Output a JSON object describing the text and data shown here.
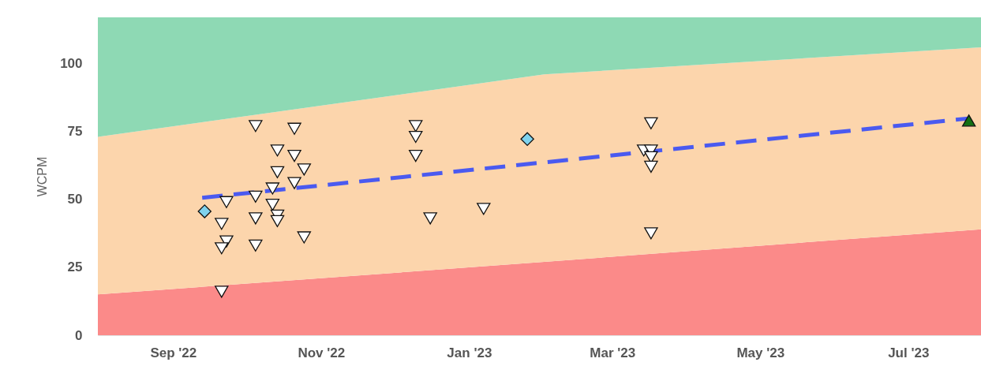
{
  "chart_data": {
    "type": "scatter",
    "ylabel": "WCPM",
    "xlim": [
      "2022-08-01",
      "2023-07-31"
    ],
    "xticks": [
      {
        "value": "2022-09-01",
        "label": "Sep '22"
      },
      {
        "value": "2022-11-01",
        "label": "Nov '22"
      },
      {
        "value": "2023-01-01",
        "label": "Jan '23"
      },
      {
        "value": "2023-03-01",
        "label": "Mar '23"
      },
      {
        "value": "2023-05-01",
        "label": "May '23"
      },
      {
        "value": "2023-07-01",
        "label": "Jul '23"
      }
    ],
    "ylim": [
      0,
      117
    ],
    "yticks": [
      0,
      25,
      50,
      75,
      100
    ],
    "grid": false,
    "stacked": true,
    "series": [
      {
        "type": "area",
        "color": "#fb8a89",
        "x": [
          "2022-08-01",
          "2023-02-01",
          "2023-07-31"
        ],
        "values": [
          15,
          27,
          39
        ]
      },
      {
        "type": "area",
        "color": "#fcd5ac",
        "x": [
          "2022-08-01",
          "2023-02-01",
          "2023-07-31"
        ],
        "values": [
          58,
          69,
          67
        ]
      },
      {
        "type": "area",
        "color": "#8ed9b4",
        "x": [
          "2022-08-01",
          "2023-02-01",
          "2023-07-31"
        ],
        "values": [
          44,
          21,
          11
        ]
      },
      {
        "type": "line",
        "color": "#4a5af0",
        "line_style": "dashed",
        "x": [
          "2022-09-13",
          "2023-07-26"
        ],
        "values": [
          50.6,
          79.8
        ]
      },
      {
        "marker": "triangle-down",
        "color": "#ffffff",
        "x": [
          "2022-10-05",
          "2022-10-21",
          "2022-10-14",
          "2022-10-21",
          "2022-10-14",
          "2022-10-25",
          "2022-10-21",
          "2022-10-12",
          "2022-10-05",
          "2022-09-23",
          "2022-10-12",
          "2022-10-14",
          "2022-10-14",
          "2022-10-05",
          "2022-09-21",
          "2022-10-25",
          "2022-09-23",
          "2022-09-21",
          "2022-10-05",
          "2022-09-21",
          "2022-12-10",
          "2022-12-10",
          "2022-12-10",
          "2022-12-16",
          "2023-01-07",
          "2023-03-17",
          "2023-03-14",
          "2023-03-17",
          "2023-03-17",
          "2023-03-17",
          "2023-03-17"
        ],
        "values": [
          77,
          76,
          68,
          66,
          60,
          61,
          56,
          54,
          51,
          49,
          48,
          44,
          42,
          43,
          41,
          36,
          34.5,
          32,
          33,
          16,
          77,
          73,
          66,
          43,
          46.5,
          78,
          68,
          68,
          65.5,
          62,
          37.5
        ]
      },
      {
        "type": "scatter",
        "marker": "diamond",
        "color": "#7fd3ee",
        "x": [
          "2022-09-14",
          "2023-01-25"
        ],
        "values": [
          45.6,
          72.2
        ]
      },
      {
        "type": "scatter",
        "marker": "triangle",
        "color": "#147014",
        "x": [
          "2023-07-26"
        ],
        "values": [
          79
        ]
      }
    ]
  }
}
